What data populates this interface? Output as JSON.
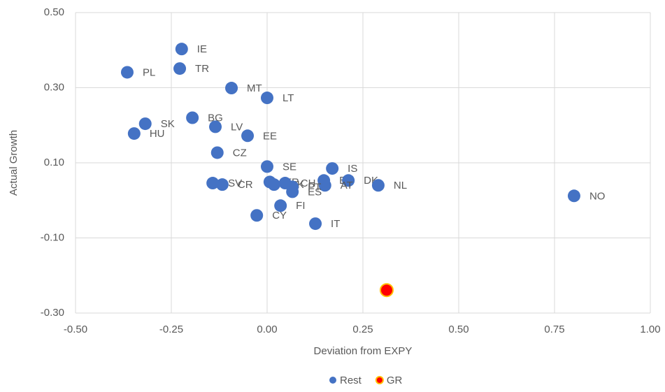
{
  "chart_data": {
    "type": "scatter",
    "xlabel": "Deviation from EXPY",
    "ylabel": "Actual Growth",
    "xlim": [
      -0.5,
      1.0
    ],
    "ylim": [
      -0.3,
      0.5
    ],
    "xticks": [
      {
        "value": -0.5,
        "label": "-0.50"
      },
      {
        "value": -0.25,
        "label": "-0.25"
      },
      {
        "value": 0,
        "label": "0.00"
      },
      {
        "value": 0.25,
        "label": "0.25"
      },
      {
        "value": 0.5,
        "label": "0.50"
      },
      {
        "value": 0.75,
        "label": "0.75"
      },
      {
        "value": 1.0,
        "label": "1.00"
      }
    ],
    "yticks": [
      {
        "value": -0.3,
        "label": "-0.30"
      },
      {
        "value": -0.1,
        "label": "-0.10"
      },
      {
        "value": 0.1,
        "label": "0.10"
      },
      {
        "value": 0.3,
        "label": "0.30"
      },
      {
        "value": 0.5,
        "label": "0.50"
      }
    ],
    "grid": true,
    "legend": "bottom",
    "series": [
      {
        "name": "Rest",
        "color": "#4472c4",
        "labels": [
          "IE",
          "PL",
          "TR",
          "MT",
          "LT",
          "BG",
          "SK",
          "LV",
          "HU",
          "EE",
          "CZ",
          "SE",
          "IS",
          "BE",
          "DK",
          "NL",
          "AT",
          "SV",
          "CR",
          "FR",
          "UK",
          "CH",
          "PT",
          "ES",
          "FI",
          "CY",
          "IT",
          "NO"
        ],
        "x": [
          -0.223,
          -0.365,
          -0.228,
          -0.093,
          0.0,
          -0.195,
          -0.318,
          -0.135,
          -0.347,
          -0.051,
          -0.13,
          0.0,
          0.17,
          0.148,
          0.212,
          0.29,
          0.151,
          -0.142,
          -0.117,
          0.007,
          0.018,
          0.047,
          0.066,
          0.066,
          0.035,
          -0.027,
          0.126,
          0.801
        ],
        "values": [
          0.403,
          0.341,
          0.351,
          0.299,
          0.273,
          0.22,
          0.204,
          0.196,
          0.178,
          0.172,
          0.127,
          0.09,
          0.085,
          0.053,
          0.053,
          0.04,
          0.04,
          0.046,
          0.042,
          0.049,
          0.042,
          0.046,
          0.036,
          0.023,
          -0.014,
          -0.04,
          -0.062,
          0.012
        ]
      },
      {
        "name": "GR",
        "color": "#ff0000",
        "x": [
          0.312
        ],
        "values": [
          -0.239
        ]
      }
    ]
  }
}
